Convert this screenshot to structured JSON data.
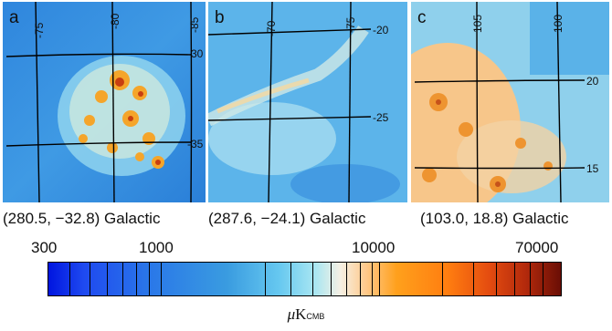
{
  "panels": [
    {
      "letter": "a",
      "caption": "(280.5, −32.8) Galactic",
      "coords": [
        "-75",
        "-80",
        "-85",
        "-30",
        "-35"
      ]
    },
    {
      "letter": "b",
      "caption": "(287.6, −24.1) Galactic",
      "coords": [
        "-70",
        "-75",
        "-20",
        "-25"
      ]
    },
    {
      "letter": "c",
      "caption": "(103.0, 18.8) Galactic",
      "coords": [
        "105",
        "100",
        "20",
        "15"
      ]
    }
  ],
  "colorbar": {
    "labels": [
      "300",
      "1000",
      "10000",
      "70000"
    ],
    "unit_symbol": "μ",
    "unit_main": "K",
    "unit_sub": "CMB"
  }
}
